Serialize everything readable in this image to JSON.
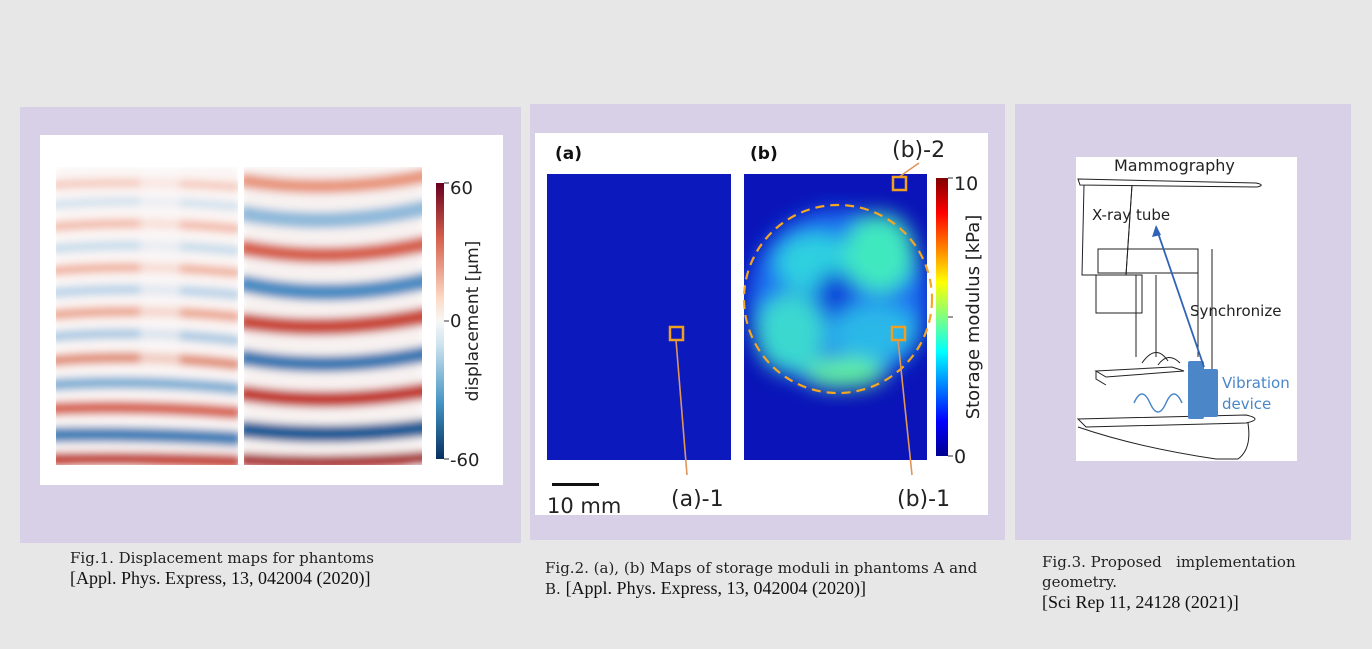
{
  "fig1": {
    "colorbar": {
      "max": "60",
      "mid": "0",
      "min": "-60",
      "label": "displacement [μm]"
    },
    "caption": {
      "text": "Fig.1. Displacement maps for phantoms",
      "ref": "[Appl. Phys. Express, 13, 042004 (2020)]"
    }
  },
  "fig2": {
    "labels": {
      "a": "(a)",
      "b": "(b)",
      "a1": "(a)-1",
      "b1": "(b)-1",
      "b2": "(b)-2",
      "scale": "10 mm"
    },
    "colorbar": {
      "max": "10",
      "min": "0",
      "label": "Storage modulus [kPa]"
    },
    "caption": {
      "text": "Fig.2. (a), (b) Maps of storage moduli in phantoms A and B. ",
      "ref": "[Appl. Phys. Express, 13, 042004 (2020)]"
    }
  },
  "fig3": {
    "labels": {
      "mammography": "Mammography",
      "xray": "X-ray tube",
      "sync": "Synchronize",
      "vib1": "Vibration",
      "vib2": "device"
    },
    "caption": {
      "line1": "Fig.3. Proposed   implementation",
      "line2": "geometry.",
      "ref": "[Sci Rep 11, 24128 (2021)]"
    }
  },
  "colors": {
    "panel": "#d7d0e6",
    "accent_orange": "#f0a020",
    "vibration_blue": "#4a86c8"
  }
}
